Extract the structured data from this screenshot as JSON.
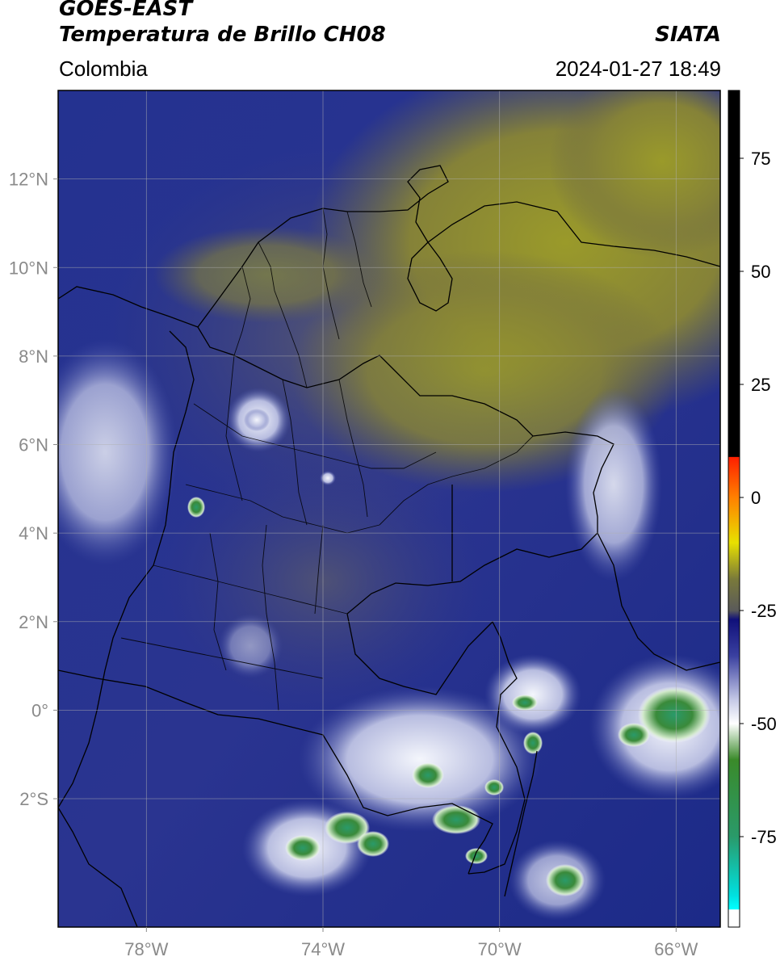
{
  "header": {
    "satellite": "GOES-EAST",
    "product": "Temperatura de Brillo CH08",
    "organization": "SIATA",
    "region": "Colombia",
    "timestamp": "2024-01-27 18:49"
  },
  "map": {
    "lon_range": [
      -80,
      -65
    ],
    "lat_range": [
      -4.9,
      14
    ],
    "lat_ticks": [
      {
        "value": 12,
        "label": "12°N"
      },
      {
        "value": 10,
        "label": "10°N"
      },
      {
        "value": 8,
        "label": "8°N"
      },
      {
        "value": 6,
        "label": "6°N"
      },
      {
        "value": 4,
        "label": "4°N"
      },
      {
        "value": 2,
        "label": "2°N"
      },
      {
        "value": 0,
        "label": "0°"
      },
      {
        "value": -2,
        "label": "2°S"
      }
    ],
    "lon_ticks": [
      {
        "value": -78,
        "label": "78°W"
      },
      {
        "value": -74,
        "label": "74°W"
      },
      {
        "value": -70,
        "label": "70°W"
      },
      {
        "value": -66,
        "label": "66°W"
      }
    ],
    "colors": {
      "ocean_cloud": "#1e2a8c",
      "dry_air": "#7f7d30",
      "cold_top": "#e8ecf8",
      "deep_conv": "#3a8a3a"
    }
  },
  "colorbar": {
    "range": [
      -95,
      90
    ],
    "ticks": [
      {
        "value": 75,
        "label": "75"
      },
      {
        "value": 50,
        "label": "50"
      },
      {
        "value": 25,
        "label": "25"
      },
      {
        "value": 0,
        "label": "0"
      },
      {
        "value": -25,
        "label": "-25"
      },
      {
        "value": -50,
        "label": "-50"
      },
      {
        "value": -75,
        "label": "-75"
      }
    ]
  }
}
